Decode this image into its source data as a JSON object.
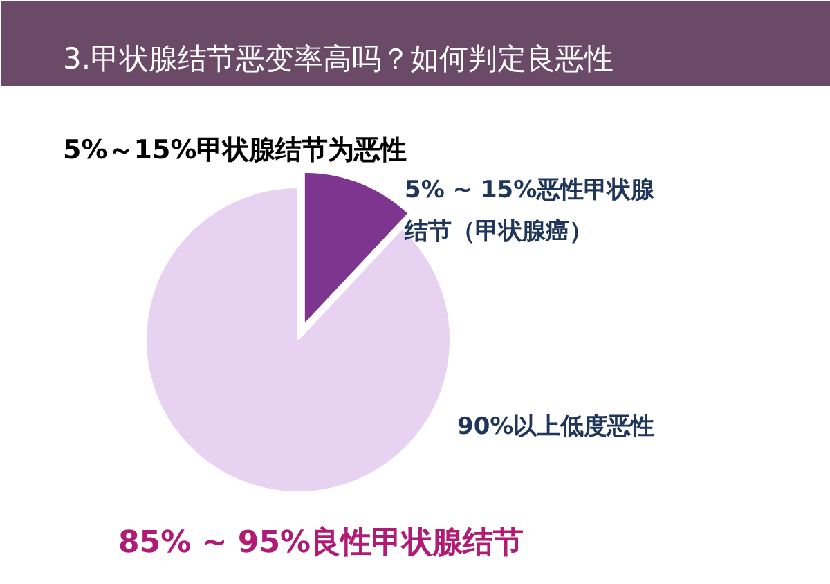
{
  "chart_data": {
    "type": "pie",
    "title": "3.甲状腺结节恶变率高吗？如何判定良恶性",
    "subtitle": "5%～15%甲状腺结节为恶性",
    "categories": [
      "5% ~ 15%恶性甲状腺结节（甲状腺癌）",
      "85% ~ 95%良性甲状腺结节"
    ],
    "values": [
      12,
      88
    ],
    "colors": [
      "#7e3590",
      "#e8d2f2"
    ],
    "annotations": [
      "90%以上低度恶性"
    ]
  }
}
